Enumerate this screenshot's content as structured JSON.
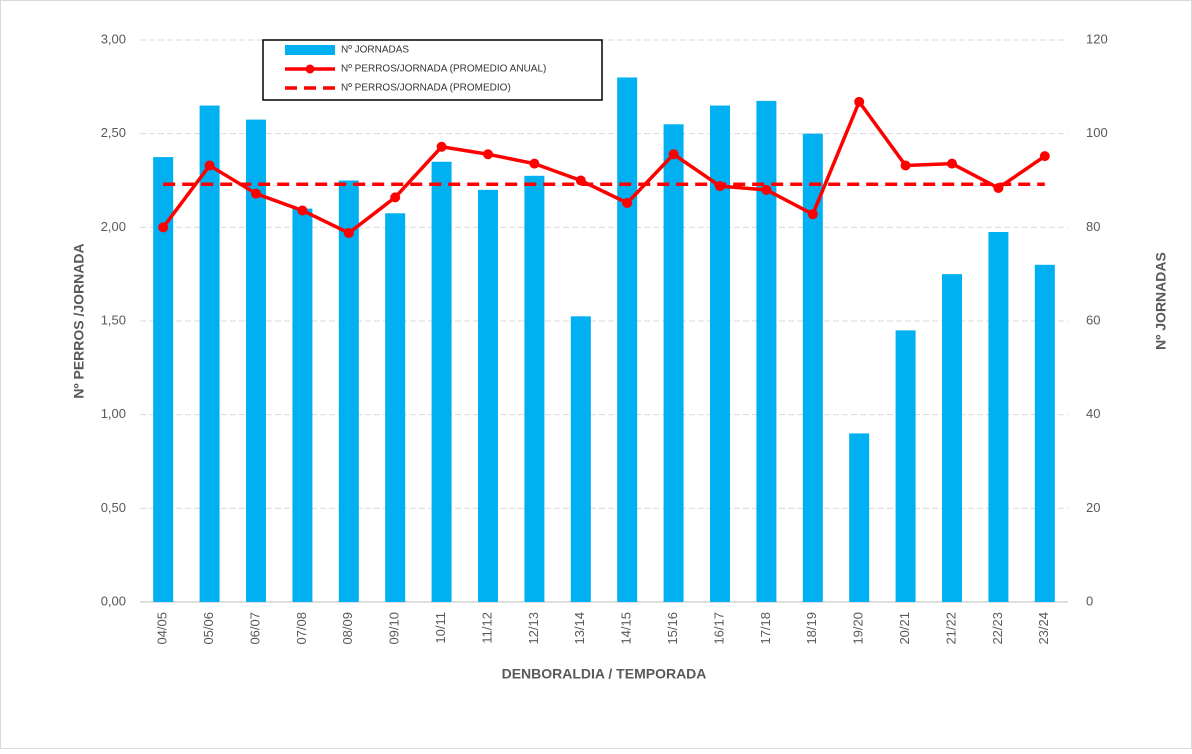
{
  "chart_data": {
    "type": "combo",
    "x_label": "DENBORALDIA / TEMPORADA",
    "y_label": "Nº PERROS /JORNADA",
    "y2_label": "Nº JORNADAS",
    "categories": [
      "04/05",
      "05/06",
      "06/07",
      "07/08",
      "08/09",
      "09/10",
      "10/11",
      "11/12",
      "12/13",
      "13/14",
      "14/15",
      "15/16",
      "16/17",
      "17/18",
      "18/19",
      "19/20",
      "20/21",
      "21/22",
      "22/23",
      "23/24"
    ],
    "series": [
      {
        "name": "Nº JORNADAS",
        "kind": "bar",
        "axis": "y2",
        "color": "#00b0f0",
        "values": [
          95,
          106,
          103,
          84,
          90,
          83,
          94,
          88,
          91,
          61,
          112,
          102,
          106,
          107,
          100,
          36,
          58,
          70,
          79,
          72
        ]
      },
      {
        "name": "Nº PERROS/JORNADA (PROMEDIO ANUAL)",
        "kind": "line",
        "color": "#ff0000",
        "values": [
          2.0,
          2.33,
          2.18,
          2.09,
          1.97,
          2.16,
          2.43,
          2.39,
          2.34,
          2.25,
          2.13,
          2.39,
          2.22,
          2.2,
          2.07,
          2.67,
          2.33,
          2.34,
          2.21,
          2.38
        ]
      },
      {
        "name": "Nº PERROS/JORNADA (PROMEDIO)",
        "kind": "dashed",
        "color": "#ff0000",
        "values": [
          2.23,
          2.23,
          2.23,
          2.23,
          2.23,
          2.23,
          2.23,
          2.23,
          2.23,
          2.23,
          2.23,
          2.23,
          2.23,
          2.23,
          2.23,
          2.23,
          2.23,
          2.23,
          2.23,
          2.23
        ]
      }
    ],
    "ylim": [
      0,
      3
    ],
    "yticks": [
      {
        "value": 0,
        "label": "0,00"
      },
      {
        "value": 0.5,
        "label": "0,50"
      },
      {
        "value": 1,
        "label": "1,00"
      },
      {
        "value": 1.5,
        "label": "1,50"
      },
      {
        "value": 2,
        "label": "2,00"
      },
      {
        "value": 2.5,
        "label": "2,50"
      },
      {
        "value": 3,
        "label": "3,00"
      }
    ],
    "y2lim": [
      0,
      120
    ],
    "y2ticks": [
      0,
      20,
      40,
      60,
      80,
      100,
      120
    ],
    "grid": true
  }
}
